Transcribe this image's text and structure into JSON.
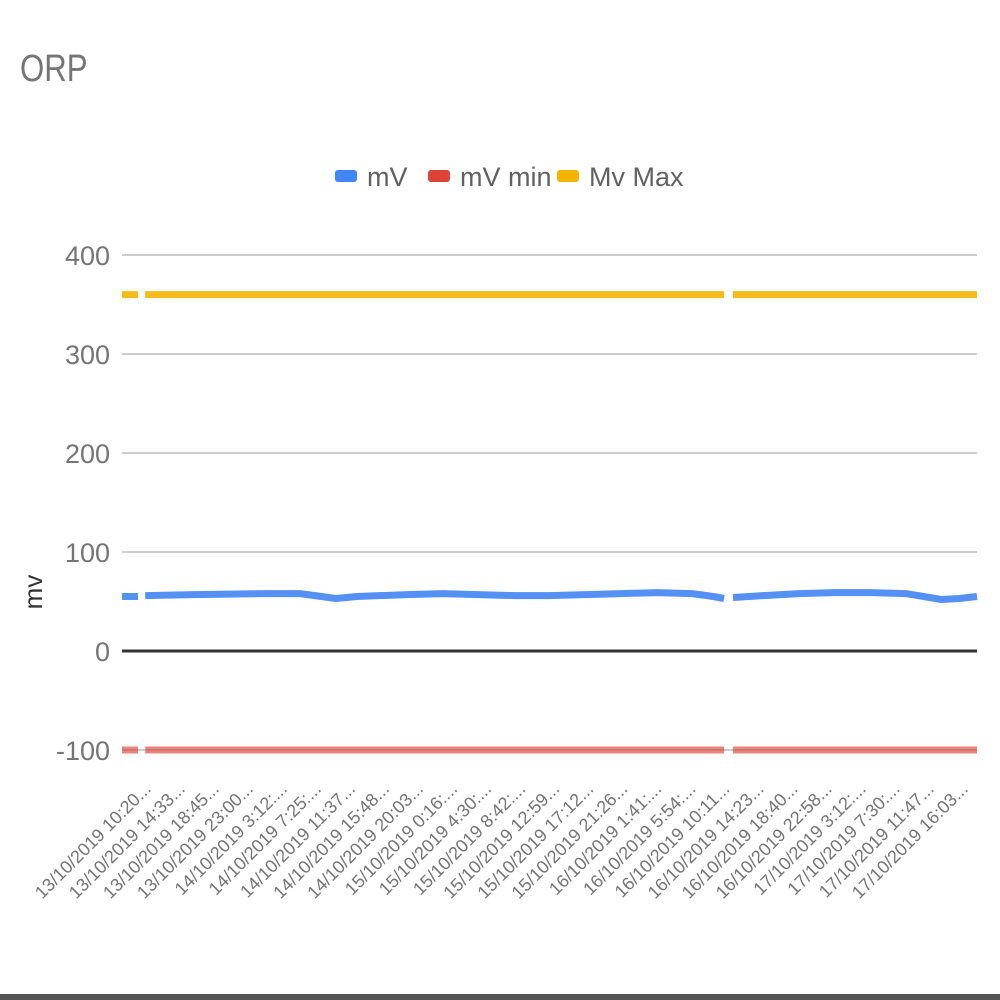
{
  "chart_data": {
    "type": "line",
    "title": "ORP",
    "ylabel": "mv",
    "ylim": [
      -100,
      400
    ],
    "yticks": [
      -100,
      0,
      100,
      200,
      300,
      400
    ],
    "grid": true,
    "legend_position": "top",
    "x_labels": [
      "13/10/2019 10:20...",
      "13/10/2019 14:33...",
      "13/10/2019 18:45...",
      "13/10/2019 23:00...",
      "14/10/2019 3:12:...",
      "14/10/2019 7:25:...",
      "14/10/2019 11:37...",
      "14/10/2019 15:48...",
      "14/10/2019 20:03...",
      "15/10/2019 0:16:...",
      "15/10/2019 4:30:...",
      "15/10/2019 8:42:...",
      "15/10/2019 12:59...",
      "15/10/2019 17:12...",
      "15/10/2019 21:26...",
      "16/10/2019 1:41:...",
      "16/10/2019 5:54:...",
      "16/10/2019 10:11...",
      "16/10/2019 14:23...",
      "16/10/2019 18:40...",
      "16/10/2019 22:58...",
      "17/10/2019 3:12:...",
      "17/10/2019 7:30:...",
      "17/10/2019 11:47...",
      "17/10/2019 16:03..."
    ],
    "x_range": [
      0,
      24
    ],
    "series": [
      {
        "name": "mV",
        "color": "#4285f4",
        "segments": [
          [
            [
              0,
              55
            ],
            [
              0.45,
              55
            ]
          ],
          [
            [
              0.65,
              56
            ],
            [
              2,
              57
            ],
            [
              4,
              58
            ],
            [
              5,
              58
            ],
            [
              5.6,
              55
            ],
            [
              6,
              53
            ],
            [
              6.6,
              55
            ],
            [
              8,
              57
            ],
            [
              9,
              58
            ],
            [
              10,
              57
            ],
            [
              11,
              56
            ],
            [
              12,
              56
            ],
            [
              13,
              57
            ],
            [
              14,
              58
            ],
            [
              15,
              59
            ],
            [
              16,
              58
            ],
            [
              16.6,
              55
            ],
            [
              16.9,
              53
            ]
          ],
          [
            [
              17.15,
              54
            ],
            [
              18,
              56
            ],
            [
              19,
              58
            ],
            [
              20,
              59
            ],
            [
              21,
              59
            ],
            [
              22,
              58
            ],
            [
              22.5,
              55
            ],
            [
              23,
              52
            ],
            [
              23.5,
              53
            ],
            [
              24,
              55
            ]
          ]
        ]
      },
      {
        "name": "mV min",
        "color": "#db4437",
        "segments": [
          [
            [
              0,
              -100
            ],
            [
              0.45,
              -100
            ]
          ],
          [
            [
              0.65,
              -100
            ],
            [
              16.9,
              -100
            ]
          ],
          [
            [
              17.15,
              -100
            ],
            [
              24,
              -100
            ]
          ]
        ]
      },
      {
        "name": "Mv Max",
        "color": "#f4b400",
        "segments": [
          [
            [
              0,
              360
            ],
            [
              0.45,
              360
            ]
          ],
          [
            [
              0.65,
              360
            ],
            [
              16.9,
              360
            ]
          ],
          [
            [
              17.15,
              360
            ],
            [
              24,
              360
            ]
          ]
        ]
      }
    ]
  }
}
